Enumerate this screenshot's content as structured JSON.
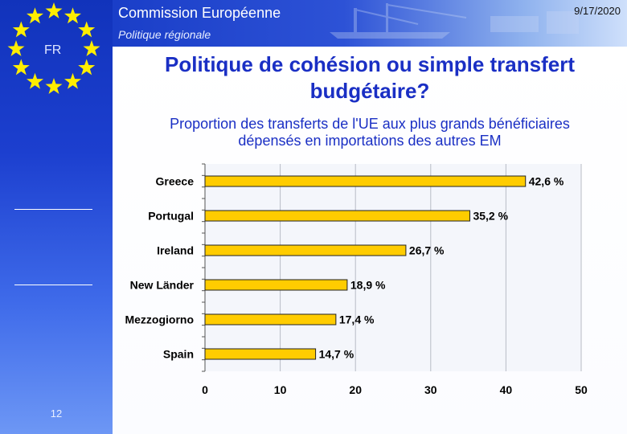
{
  "header": {
    "org_title": "Commission Européenne",
    "subtitle": "Politique régionale",
    "date": "9/17/2020",
    "country_code": "FR"
  },
  "sidebar": {
    "page_number": "12"
  },
  "slide": {
    "title": "Politique de cohésion ou simple transfert budgétaire?",
    "chart_title_line1": "Proportion des transferts de l'UE aux plus grands bénéficiaires",
    "chart_title_line2": "dépensés en importations des autres EM"
  },
  "colors": {
    "bar_fill": "#ffcc00",
    "title_blue": "#1a2fc4",
    "sidebar_blue": "#1133bb",
    "star_yellow": "#ffee00"
  },
  "chart_data": {
    "type": "bar",
    "orientation": "horizontal",
    "categories": [
      "Greece",
      "Portugal",
      "Ireland",
      "New Länder",
      "Mezzogiorno",
      "Spain"
    ],
    "values": [
      42.6,
      35.2,
      26.7,
      18.9,
      17.4,
      14.7
    ],
    "value_labels": [
      "42,6 %",
      "35,2 %",
      "26,7 %",
      "18,9 %",
      "17,4 %",
      "14,7 %"
    ],
    "xlim": [
      0,
      50
    ],
    "xticks": [
      "0",
      "10",
      "20",
      "30",
      "40",
      "50"
    ],
    "title": "Proportion des transferts de l'UE aux plus grands bénéficiaires dépensés en importations des autres EM",
    "grid": true
  }
}
